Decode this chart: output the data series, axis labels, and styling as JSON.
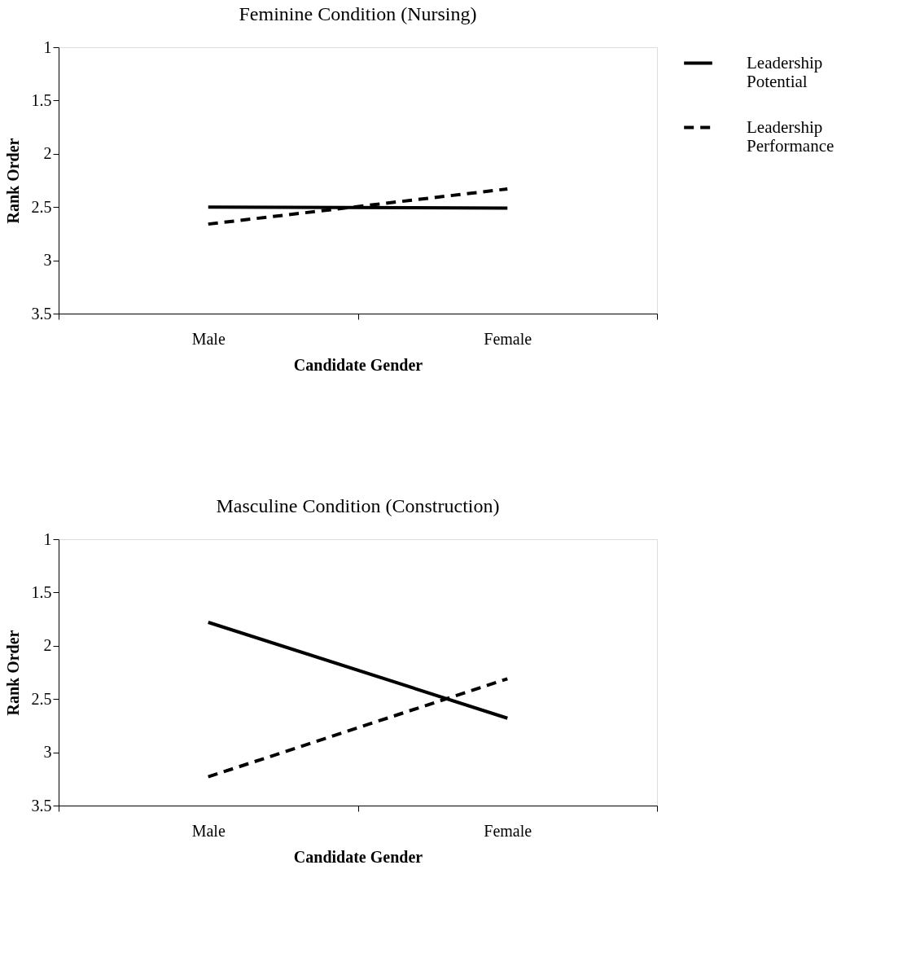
{
  "chart_data": [
    {
      "type": "line",
      "title": "Feminine Condition (Nursing)",
      "xlabel": "Candidate Gender",
      "ylabel": "Rank Order",
      "categories": [
        "Male",
        "Female"
      ],
      "ylim": [
        3.5,
        1
      ],
      "yticks": [
        1,
        1.5,
        2,
        2.5,
        3,
        3.5
      ],
      "grid": false,
      "legend": "right",
      "marker": "none",
      "series": [
        {
          "name": "Leadership Potential",
          "color": "#000000",
          "line_style": "solid",
          "values": [
            2.5,
            2.51
          ]
        },
        {
          "name": "Leadership Performance",
          "color": "#000000",
          "line_style": "dashed",
          "values": [
            2.66,
            2.33
          ]
        }
      ]
    },
    {
      "type": "line",
      "title": "Masculine Condition (Construction)",
      "xlabel": "Candidate Gender",
      "ylabel": "Rank Order",
      "categories": [
        "Male",
        "Female"
      ],
      "ylim": [
        3.5,
        1
      ],
      "yticks": [
        1,
        1.5,
        2,
        2.5,
        3,
        3.5
      ],
      "grid": false,
      "legend": false,
      "marker": "none",
      "series": [
        {
          "color": "#000000",
          "line_style": "solid",
          "values": [
            1.78,
            2.68
          ]
        },
        {
          "color": "#000000",
          "line_style": "dashed",
          "values": [
            3.23,
            2.31
          ]
        }
      ]
    }
  ]
}
